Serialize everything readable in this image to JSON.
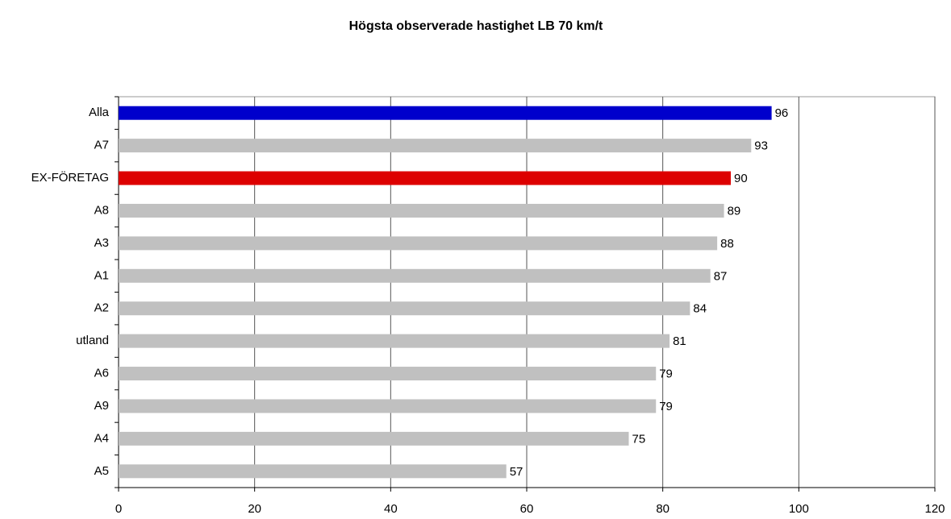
{
  "chart_data": {
    "type": "bar",
    "orientation": "horizontal",
    "title": "Högsta observerade hastighet LB 70 km/t",
    "categories": [
      "Alla",
      "A7",
      "EX-FÖRETAG",
      "A8",
      "A3",
      "A1",
      "A2",
      "utland",
      "A6",
      "A9",
      "A4",
      "A5"
    ],
    "values": [
      96,
      93,
      90,
      89,
      88,
      87,
      84,
      81,
      79,
      79,
      75,
      57
    ],
    "colors": [
      "#0000cc",
      "#c0c0c0",
      "#dd0000",
      "#c0c0c0",
      "#c0c0c0",
      "#c0c0c0",
      "#c0c0c0",
      "#c0c0c0",
      "#c0c0c0",
      "#c0c0c0",
      "#c0c0c0",
      "#c0c0c0"
    ],
    "xlim": [
      0,
      120
    ],
    "xticks": [
      0,
      20,
      40,
      60,
      80,
      100,
      120
    ],
    "grid": true
  }
}
